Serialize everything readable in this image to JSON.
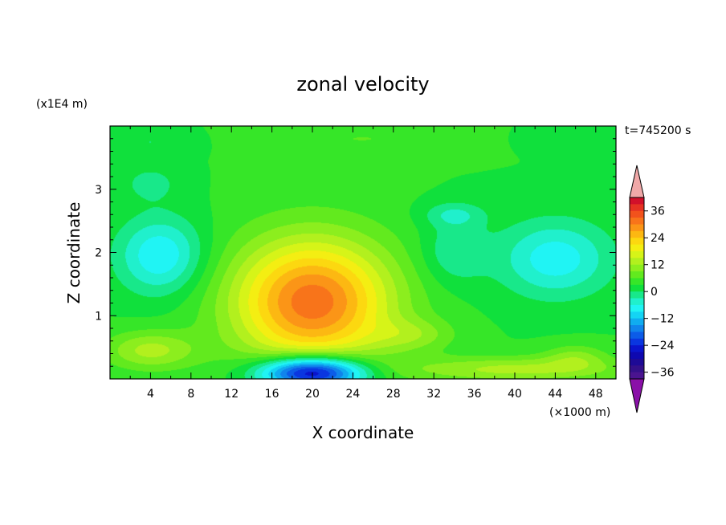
{
  "chart_data": {
    "type": "heatmap",
    "title": "zonal velocity",
    "xlabel": "X coordinate",
    "ylabel": "Z coordinate",
    "x_unit": "(×1000 m)",
    "y_unit": "(x1E4 m)",
    "time_label": "t=745200 s",
    "xlim": [
      0,
      50
    ],
    "ylim": [
      0,
      4
    ],
    "x_ticks": [
      4,
      8,
      12,
      16,
      20,
      24,
      28,
      32,
      36,
      40,
      44,
      48
    ],
    "y_ticks": [
      1,
      2,
      3
    ],
    "colorbar": {
      "ticks": [
        36,
        24,
        12,
        0,
        -12,
        -24,
        -36
      ],
      "levels": [
        42,
        39,
        36,
        33,
        30,
        27,
        24,
        21,
        18,
        15,
        12,
        9,
        6,
        3,
        0,
        -3,
        -6,
        -9,
        -12,
        -15,
        -18,
        -21,
        -24,
        -27,
        -30,
        -33,
        -36,
        -39
      ],
      "colors": [
        "#d2102a",
        "#e63222",
        "#f2521c",
        "#f8741a",
        "#fb9517",
        "#fcb812",
        "#fcd810",
        "#f4ee12",
        "#d6f418",
        "#b2f01e",
        "#8cee1e",
        "#62ea1e",
        "#36e628",
        "#10e03c",
        "#18e88a",
        "#20f0cc",
        "#20f4f4",
        "#14d4f4",
        "#10acf0",
        "#1084ec",
        "#0c5ce8",
        "#0a36e0",
        "#0a14cc",
        "#0e08b0",
        "#1e0a96",
        "#34108a",
        "#4a1490"
      ],
      "over_color": "#f0a8a8",
      "under_color": "#8a10a8"
    },
    "field": {
      "background": 3,
      "features": [
        {
          "kind": "core",
          "x": 20,
          "z": 1.22,
          "sx": 7.8,
          "sz": 1.0,
          "amp": 29
        },
        {
          "kind": "core",
          "x": 20,
          "z": 0.1,
          "sx": 5.2,
          "sz": 0.26,
          "amp": -36
        },
        {
          "kind": "core",
          "x": 5,
          "z": 1.95,
          "sx": 4.2,
          "sz": 0.6,
          "amp": -12
        },
        {
          "kind": "core",
          "x": 44,
          "z": 1.9,
          "sx": 5.5,
          "sz": 0.6,
          "amp": -11
        },
        {
          "kind": "core",
          "x": 34,
          "z": 2.0,
          "sx": 3.2,
          "sz": 0.5,
          "amp": -6
        },
        {
          "kind": "core",
          "x": 34,
          "z": 2.6,
          "sx": 3,
          "sz": 0.2,
          "amp": -6
        },
        {
          "kind": "core",
          "x": 4,
          "z": 3.1,
          "sx": 3,
          "sz": 0.3,
          "amp": -4
        },
        {
          "kind": "core",
          "x": 4,
          "z": 0.45,
          "sx": 4.5,
          "sz": 0.3,
          "amp": 10
        },
        {
          "kind": "core",
          "x": 40,
          "z": 0.15,
          "sx": 11,
          "sz": 0.2,
          "amp": 10
        },
        {
          "kind": "core",
          "x": 46,
          "z": 0.35,
          "sx": 3,
          "sz": 0.2,
          "amp": 6
        },
        {
          "kind": "core",
          "x": 30,
          "z": 0.7,
          "sx": 4,
          "sz": 0.25,
          "amp": 6
        },
        {
          "kind": "core",
          "x": 25,
          "z": 3.8,
          "sx": 10,
          "sz": 0.25,
          "amp": 3
        },
        {
          "kind": "core",
          "x": 4,
          "z": 3.75,
          "sx": 4,
          "sz": 0.2,
          "amp": -3
        },
        {
          "kind": "core",
          "x": 48,
          "z": 3.8,
          "sx": 6,
          "sz": 0.2,
          "amp": -3
        }
      ]
    }
  }
}
